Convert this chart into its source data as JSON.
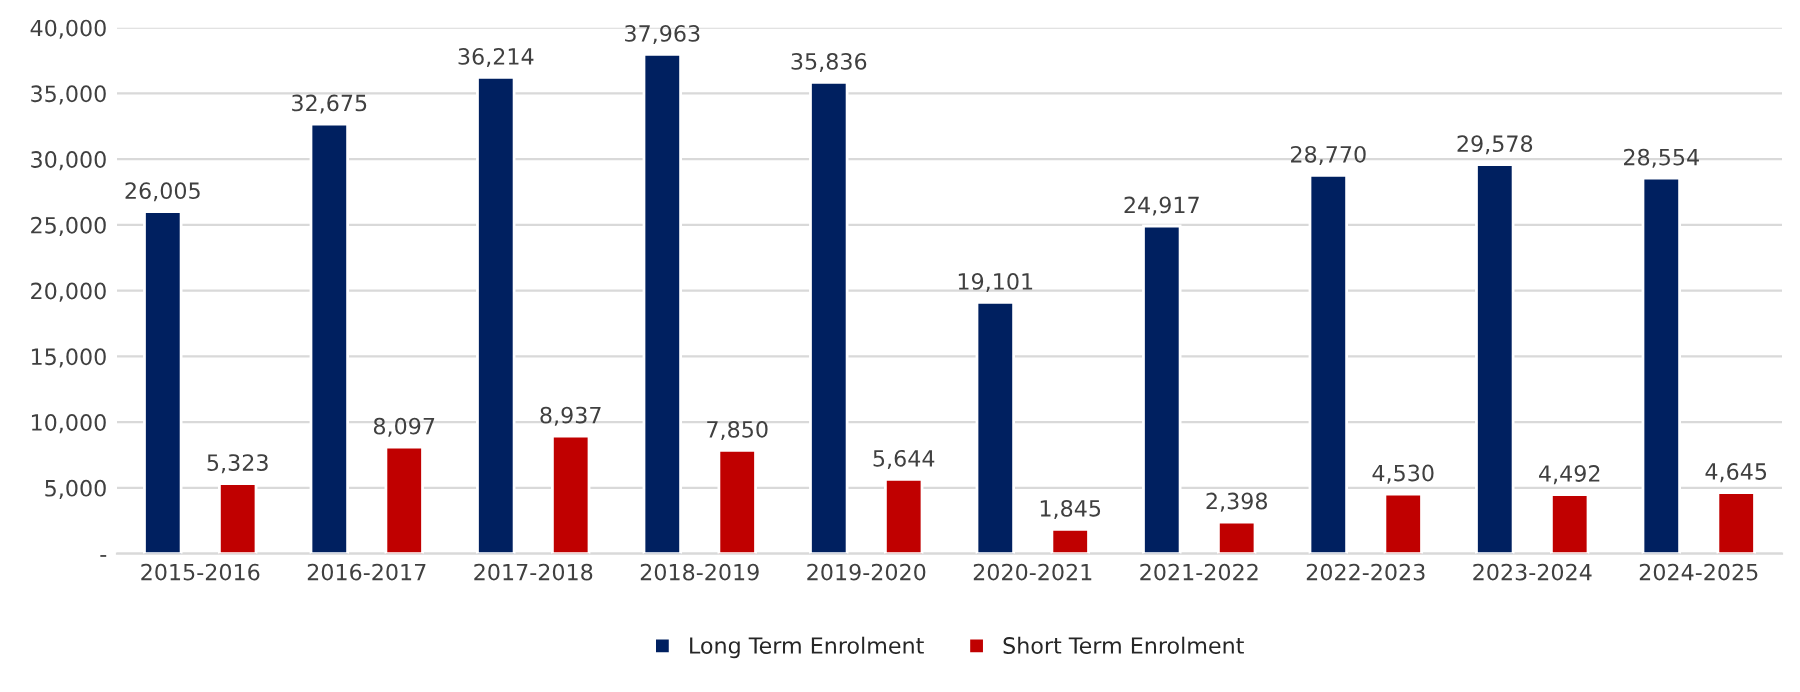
{
  "chart_data": {
    "type": "bar",
    "categories": [
      "2015-2016",
      "2016-2017",
      "2017-2018",
      "2018-2019",
      "2019-2020",
      "2020-2021",
      "2021-2022",
      "2022-2023",
      "2023-2024",
      "2024-2025"
    ],
    "series": [
      {
        "name": "Long Term Enrolment",
        "color": "#002060",
        "values": [
          26005,
          32675,
          36214,
          37963,
          35836,
          19101,
          24917,
          28770,
          29578,
          28554
        ],
        "value_labels": [
          "26,005",
          "32,675",
          "36,214",
          "37,963",
          "35,836",
          "19,101",
          "24,917",
          "28,770",
          "29,578",
          "28,554"
        ]
      },
      {
        "name": "Short Term Enrolment",
        "color": "#c00000",
        "values": [
          5323,
          8097,
          8937,
          7850,
          5644,
          1845,
          2398,
          4530,
          4492,
          4645
        ],
        "value_labels": [
          "5,323",
          "8,097",
          "8,937",
          "7,850",
          "5,644",
          "1,845",
          "2,398",
          "4,530",
          "4,492",
          "4,645"
        ]
      }
    ],
    "ylim": [
      0,
      40000
    ],
    "yticks": [
      {
        "value": 0,
        "label": "-"
      },
      {
        "value": 5000,
        "label": "5,000"
      },
      {
        "value": 10000,
        "label": "10,000"
      },
      {
        "value": 15000,
        "label": "15,000"
      },
      {
        "value": 20000,
        "label": "20,000"
      },
      {
        "value": 25000,
        "label": "25,000"
      },
      {
        "value": 30000,
        "label": "30,000"
      },
      {
        "value": 35000,
        "label": "35,000"
      },
      {
        "value": 40000,
        "label": "40,000"
      }
    ],
    "grid": "y",
    "legend": "bottom"
  }
}
